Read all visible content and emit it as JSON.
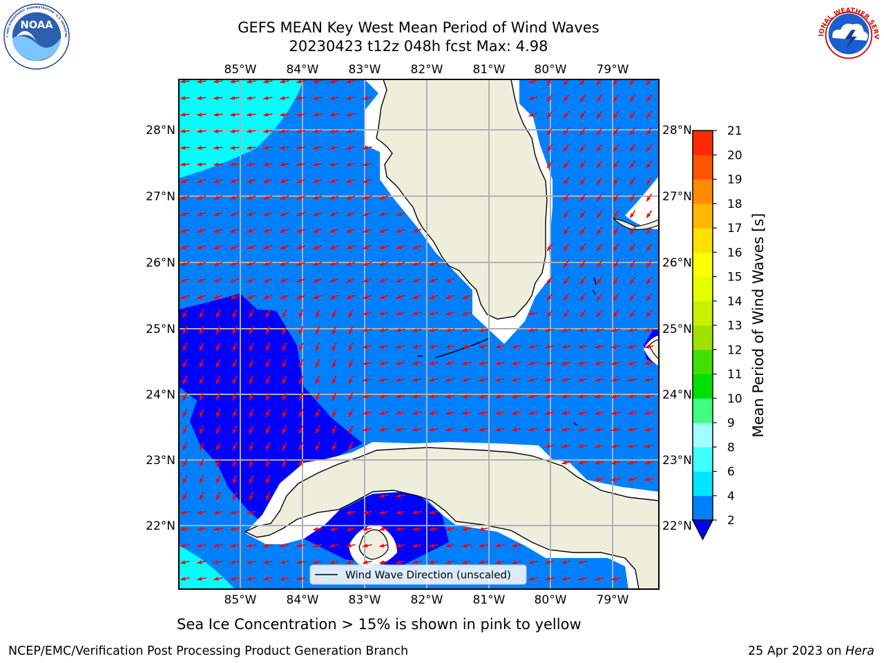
{
  "header": {
    "title_line1": "GEFS MEAN Key West Mean Period of Wind Waves",
    "title_line2": "20230423 t12z 048h fcst   Max: 4.98"
  },
  "logos": {
    "noaa_text": "NOAA",
    "noaa_ring_text": "NATIONAL OCEANIC AND ATMOSPHERIC ADMINISTRATION · U.S. DEPARTMENT OF COMMERCE",
    "nws_ring_text": "NATIONAL WEATHER SERVICE"
  },
  "map": {
    "lon_range": [
      -86,
      -78.3
    ],
    "lat_range": [
      21.1,
      28.8
    ],
    "lon_ticks": [
      "85°W",
      "84°W",
      "83°W",
      "82°W",
      "81°W",
      "80°W",
      "79°W"
    ],
    "lat_ticks": [
      "28°N",
      "27°N",
      "26°N",
      "25°N",
      "24°N",
      "23°N",
      "22°N"
    ],
    "legend_label": "Wind Wave Direction (unscaled)",
    "vector_color": "#ff0000",
    "land_color": "#eeeedd",
    "grid": true
  },
  "colorbar": {
    "label": "Mean Period of Wind Waves [s]",
    "levels": [
      "2",
      "4",
      "6",
      "8",
      "9",
      "10",
      "11",
      "12",
      "13",
      "14",
      "15",
      "16",
      "17",
      "18",
      "19",
      "20",
      "21"
    ],
    "colors": [
      "#0080ff",
      "#00e5ff",
      "#40ffff",
      "#a0ffff",
      "#40ff80",
      "#00e000",
      "#40e000",
      "#a0e000",
      "#c8f000",
      "#e6ff00",
      "#ffff00",
      "#ffe000",
      "#ffb800",
      "#ff8c00",
      "#ff5500",
      "#ff2a00",
      "#ff0000"
    ],
    "extend_color": "#0000ff"
  },
  "field_colors": {
    "lt2": "#0000ff",
    "p2_4": "#0080ff",
    "p4_6": "#00ffff",
    "missing": "#ffffff"
  },
  "footer": {
    "note": "Sea Ice Concentration > 15% is shown in pink to yellow",
    "credit": "NCEP/EMC/Verification Post Processing Product Generation Branch",
    "date": "25 Apr 2023 on",
    "host": "Hera"
  }
}
